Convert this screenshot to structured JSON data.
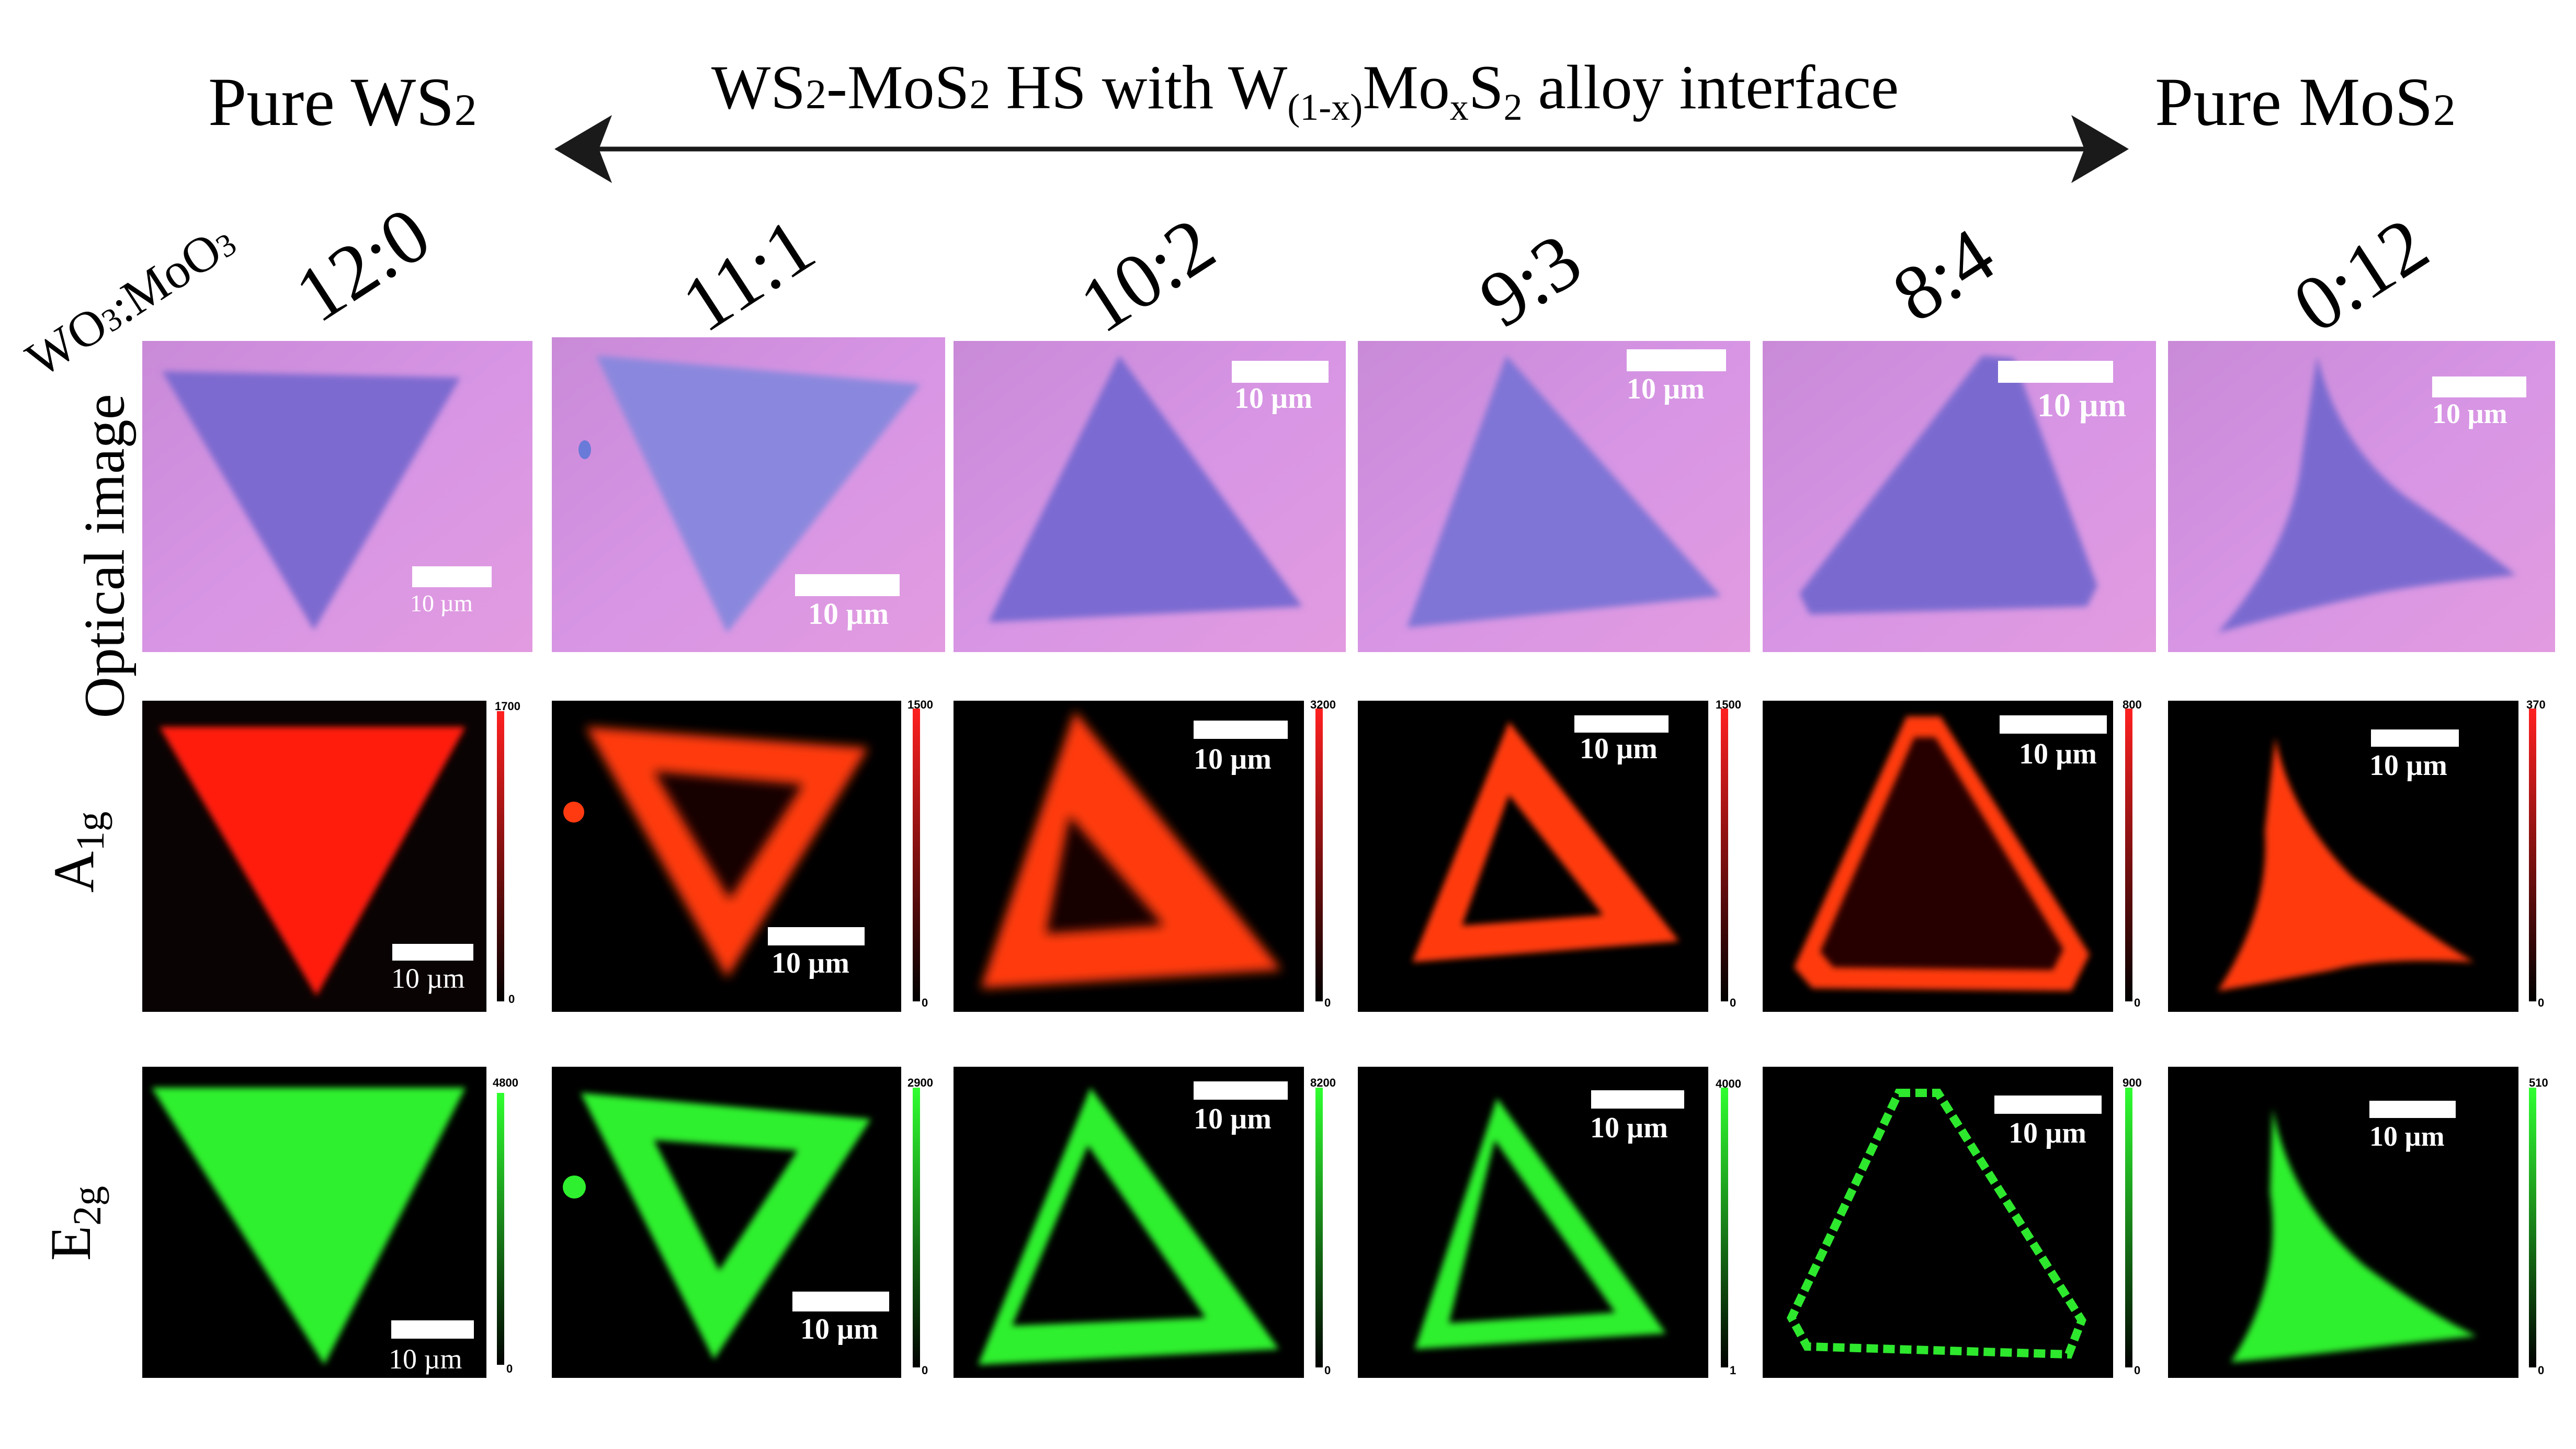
{
  "header": {
    "left_title": "Pure WS",
    "left_sub": "2",
    "right_title": "Pure MoS",
    "right_sub": "2",
    "center_a": "WS",
    "center_a_sub": "2",
    "center_b": "-MoS",
    "center_b_sub": "2",
    "center_c": " HS with W",
    "center_c_sub": "(1-x)",
    "center_d": "Mo",
    "center_d_sub": "x",
    "center_e": "S",
    "center_e_sub": "2",
    "center_f": " alloy interface"
  },
  "ratio_axis": {
    "a": "WO",
    "a_sub": "3",
    "b": ":MoO",
    "b_sub": "3"
  },
  "ratios": [
    "12:0",
    "11:1",
    "10:2",
    "9:3",
    "8:4",
    "0:12"
  ],
  "row_labels": {
    "optical": "Optical image",
    "a1g_main": "A",
    "a1g_sub": "1g",
    "e2g_main": "E",
    "e2g_sub": "2g"
  },
  "scale_bar_label": "10 µm",
  "a1g_colorbar_max": [
    "1700",
    "1500",
    "3200",
    "1500",
    "800",
    "370"
  ],
  "a1g_colorbar_min": [
    "0",
    "0",
    "0",
    "0",
    "0",
    "0"
  ],
  "e2g_colorbar_max": [
    "4800",
    "2900",
    "8200",
    "4000",
    "900",
    "510"
  ],
  "e2g_colorbar_min": [
    "0",
    "0",
    "0",
    "1",
    "0",
    "0"
  ],
  "colors": {
    "optical_bg": "#d98fe0",
    "optical_flake": "#7a63c8",
    "a1g": "#ff2a10",
    "e2g": "#22ee22",
    "map_bg": "#000000"
  }
}
